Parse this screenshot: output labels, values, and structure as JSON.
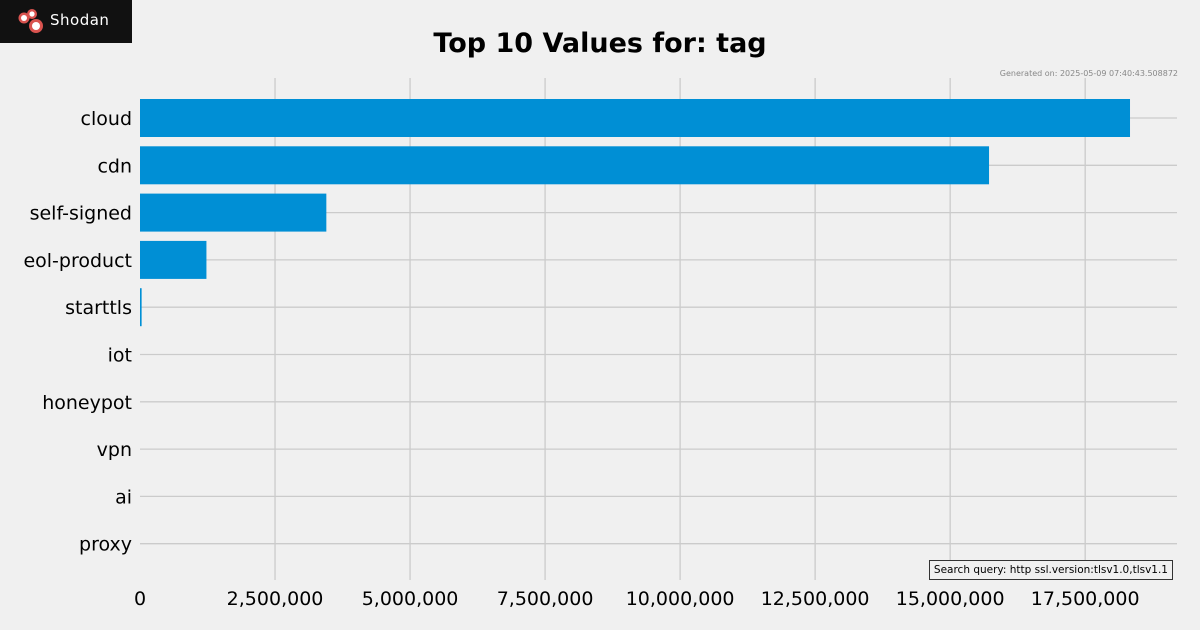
{
  "brand": {
    "logo_text": "Shodan",
    "colors": {
      "logo_bg": "#111111",
      "logo_dot": "#d9534f"
    }
  },
  "generated_text": "Generated on: 2025-05-09 07:40:43.508872",
  "search_query_text": "Search query: http ssl.version:tlsv1.0,tlsv1.1",
  "colors": {
    "bar": "#008fd5",
    "grid": "#cbcbcb",
    "background": "#f0f0f0"
  },
  "chart_data": {
    "type": "bar",
    "orientation": "horizontal",
    "title": "Top 10 Values for: tag",
    "xlabel": "",
    "ylabel": "",
    "categories": [
      "cloud",
      "cdn",
      "self-signed",
      "eol-product",
      "starttls",
      "iot",
      "honeypot",
      "vpn",
      "ai",
      "proxy"
    ],
    "values": [
      18330000,
      15720000,
      3450000,
      1230000,
      30000,
      0,
      0,
      0,
      0,
      0
    ],
    "xlim": [
      0,
      19200000
    ],
    "xticks": [
      0,
      2500000,
      5000000,
      7500000,
      10000000,
      12500000,
      15000000,
      17500000
    ],
    "xtick_labels": [
      "0",
      "2,500,000",
      "5,000,000",
      "7,500,000",
      "10,000,000",
      "12,500,000",
      "15,000,000",
      "17,500,000"
    ],
    "grid": true,
    "legend": "none"
  }
}
